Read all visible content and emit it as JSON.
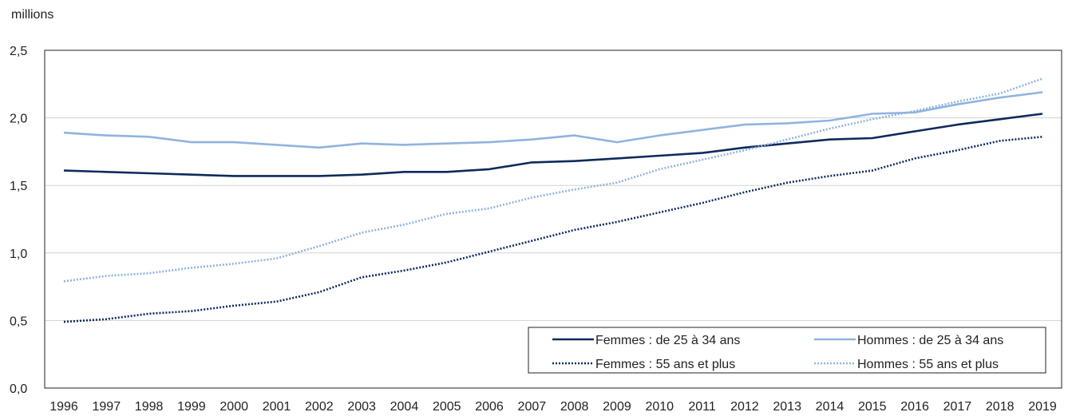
{
  "chart_data": {
    "type": "line",
    "ylabel": "millions",
    "xlabel": "",
    "title": "",
    "ylim": [
      0,
      2.5
    ],
    "yticks": [
      "0,0",
      "0,5",
      "1,0",
      "1,5",
      "2,0",
      "2,5"
    ],
    "grid": true,
    "legend_position": "bottom-right",
    "x": [
      "1996",
      "1997",
      "1998",
      "1999",
      "2000",
      "2001",
      "2002",
      "2003",
      "2004",
      "2005",
      "2006",
      "2007",
      "2008",
      "2009",
      "2010",
      "2011",
      "2012",
      "2013",
      "2014",
      "2015",
      "2016",
      "2017",
      "2018",
      "2019"
    ],
    "series": [
      {
        "name": "Femmes : de 25 à 34 ans",
        "color": "#0d2a5c",
        "style": "solid",
        "values": [
          1.61,
          1.6,
          1.59,
          1.58,
          1.57,
          1.57,
          1.57,
          1.58,
          1.6,
          1.6,
          1.62,
          1.67,
          1.68,
          1.7,
          1.72,
          1.74,
          1.78,
          1.81,
          1.84,
          1.85,
          1.9,
          1.95,
          1.99,
          2.03
        ]
      },
      {
        "name": "Hommes : de 25 à 34 ans",
        "color": "#8fb3e0",
        "style": "solid",
        "values": [
          1.89,
          1.87,
          1.86,
          1.82,
          1.82,
          1.8,
          1.78,
          1.81,
          1.8,
          1.81,
          1.82,
          1.84,
          1.87,
          1.82,
          1.87,
          1.91,
          1.95,
          1.96,
          1.98,
          2.03,
          2.04,
          2.1,
          2.15,
          2.19
        ]
      },
      {
        "name": "Femmes : 55 ans et plus",
        "color": "#0d2a5c",
        "style": "dotted",
        "values": [
          0.49,
          0.51,
          0.55,
          0.57,
          0.61,
          0.64,
          0.71,
          0.82,
          0.87,
          0.93,
          1.01,
          1.09,
          1.17,
          1.23,
          1.3,
          1.37,
          1.45,
          1.52,
          1.57,
          1.61,
          1.7,
          1.76,
          1.83,
          1.86
        ]
      },
      {
        "name": "Hommes : 55 ans et plus",
        "color": "#8fb3e0",
        "style": "dotted",
        "values": [
          0.79,
          0.83,
          0.85,
          0.89,
          0.92,
          0.96,
          1.05,
          1.15,
          1.21,
          1.29,
          1.33,
          1.41,
          1.47,
          1.52,
          1.62,
          1.69,
          1.76,
          1.84,
          1.92,
          1.99,
          2.05,
          2.12,
          2.18,
          2.29
        ]
      }
    ]
  }
}
